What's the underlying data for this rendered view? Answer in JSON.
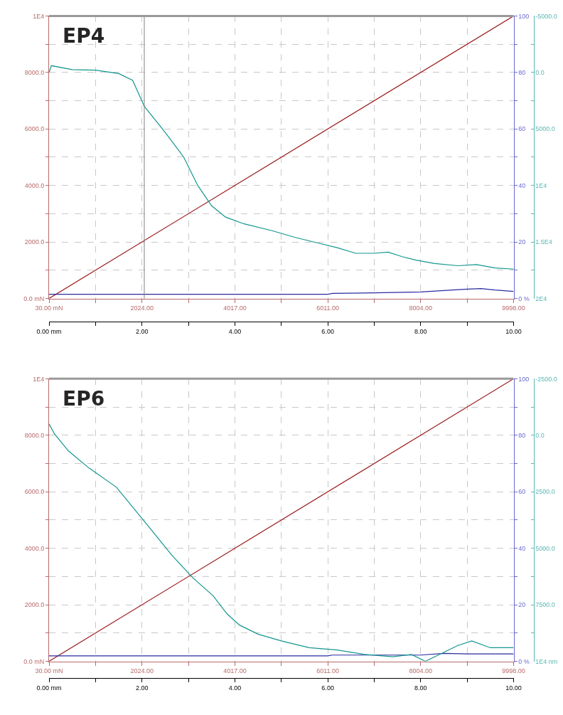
{
  "chart_data": [
    {
      "type": "line",
      "title": "EP4",
      "grid": true,
      "marker": "none",
      "line_style": "solid",
      "xlim": [
        0,
        10
      ],
      "xticks": [
        {
          "value": 0,
          "label": "0.00 mm"
        },
        {
          "value": 1,
          "label": null
        },
        {
          "value": 2,
          "label": "2.00"
        },
        {
          "value": 3,
          "label": null
        },
        {
          "value": 4,
          "label": "4.00"
        },
        {
          "value": 5,
          "label": null
        },
        {
          "value": 6,
          "label": "6.00"
        },
        {
          "value": 7,
          "label": null
        },
        {
          "value": 8,
          "label": "8.00"
        },
        {
          "value": 9,
          "label": null
        },
        {
          "value": 10,
          "label": "10.00"
        }
      ],
      "x2lim": [
        30,
        9998
      ],
      "x2ticks": [
        {
          "value": 30,
          "label": "30.00 mN"
        },
        {
          "value": 1026.8,
          "label": null
        },
        {
          "value": 2024,
          "label": "2024.00"
        },
        {
          "value": 3020.4,
          "label": null
        },
        {
          "value": 4017,
          "label": "4017.00"
        },
        {
          "value": 5014,
          "label": null
        },
        {
          "value": 6011,
          "label": "6011.00"
        },
        {
          "value": 7007.6,
          "label": null
        },
        {
          "value": 8004,
          "label": "8004.00"
        },
        {
          "value": 9001.2,
          "label": null
        },
        {
          "value": 9998,
          "label": "9998.00"
        }
      ],
      "ylim": [
        0,
        10000
      ],
      "yticks": [
        {
          "value": 0,
          "label": "0.0 mN"
        },
        {
          "value": 1000,
          "label": null
        },
        {
          "value": 2000,
          "label": "2000.0"
        },
        {
          "value": 3000,
          "label": null
        },
        {
          "value": 4000,
          "label": "4000.0"
        },
        {
          "value": 5000,
          "label": null
        },
        {
          "value": 6000,
          "label": "6000.0"
        },
        {
          "value": 7000,
          "label": null
        },
        {
          "value": 8000,
          "label": "8000.0"
        },
        {
          "value": 9000,
          "label": null
        },
        {
          "value": 10000,
          "label": "1E4"
        }
      ],
      "y2lim": [
        0,
        100
      ],
      "y2ticks": [
        {
          "value": 0,
          "label": "0 %"
        },
        {
          "value": 10,
          "label": null
        },
        20,
        {
          "value": 30,
          "label": null
        },
        40,
        {
          "value": 50,
          "label": null
        },
        60,
        {
          "value": 70,
          "label": null
        },
        80,
        {
          "value": 90,
          "label": null
        },
        100
      ],
      "y3lim": [
        20000,
        -5000
      ],
      "y3ticks": [
        {
          "value": -5000,
          "label": "-5000.0"
        },
        {
          "value": -2500,
          "label": null
        },
        {
          "value": 0,
          "label": "0.0"
        },
        {
          "value": 2500,
          "label": null
        },
        {
          "value": 5000,
          "label": "5000.0"
        },
        {
          "value": 7500,
          "label": null
        },
        {
          "value": 10000,
          "label": "1E4"
        },
        {
          "value": 12500,
          "label": null
        },
        {
          "value": 15000,
          "label": "1.5E4"
        },
        {
          "value": 17500,
          "label": null
        },
        {
          "value": 20000,
          "label": "2E4"
        }
      ],
      "ref_lines": [
        {
          "axis": "x",
          "value": 2.05,
          "color": "#808080"
        }
      ],
      "series": [
        {
          "color": "#9b1c1c",
          "x": [
            0,
            10
          ],
          "values": [
            0,
            10000
          ]
        },
        {
          "color": "#2b2ba0",
          "axis": "y2",
          "x": [
            0,
            6,
            6.1,
            7,
            8,
            8.5,
            9,
            9.3,
            9.6,
            10
          ],
          "values": [
            1.5,
            1.5,
            1.8,
            2.0,
            2.3,
            2.8,
            3.3,
            3.5,
            3.0,
            2.5
          ]
        },
        {
          "color": "#12968e",
          "axis": "y3",
          "x": [
            0,
            0.05,
            0.5,
            1.0,
            1.5,
            1.8,
            2.05,
            2.5,
            2.9,
            3.2,
            3.5,
            3.8,
            4.2,
            4.8,
            5.3,
            5.8,
            6.2,
            6.6,
            7.0,
            7.3,
            7.6,
            7.9,
            8.3,
            8.8,
            9.2,
            9.6,
            10
          ],
          "values": [
            0,
            -600,
            -250,
            -200,
            100,
            700,
            3000,
            5300,
            7500,
            10000,
            11800,
            12800,
            13400,
            14000,
            14600,
            15100,
            15500,
            16000,
            16000,
            15900,
            16300,
            16600,
            16900,
            17100,
            17000,
            17300,
            17400
          ]
        }
      ]
    },
    {
      "type": "line",
      "title": "EP6",
      "grid": true,
      "marker": "none",
      "line_style": "solid",
      "xlim": [
        0,
        10
      ],
      "xticks": [
        {
          "value": 0,
          "label": "0.00 mm"
        },
        {
          "value": 1,
          "label": null
        },
        {
          "value": 2,
          "label": "2.00"
        },
        {
          "value": 3,
          "label": null
        },
        {
          "value": 4,
          "label": "4.00"
        },
        {
          "value": 5,
          "label": null
        },
        {
          "value": 6,
          "label": "6.00"
        },
        {
          "value": 7,
          "label": null
        },
        {
          "value": 8,
          "label": "8.00"
        },
        {
          "value": 9,
          "label": null
        },
        {
          "value": 10,
          "label": "10.00"
        }
      ],
      "x2lim": [
        30,
        9998
      ],
      "x2ticks": [
        {
          "value": 30,
          "label": "30.00 mN"
        },
        {
          "value": 1026.8,
          "label": null
        },
        {
          "value": 2024,
          "label": "2024.00"
        },
        {
          "value": 3020.4,
          "label": null
        },
        {
          "value": 4017,
          "label": "4017.00"
        },
        {
          "value": 5014,
          "label": null
        },
        {
          "value": 6011,
          "label": "6011.00"
        },
        {
          "value": 7007.6,
          "label": null
        },
        {
          "value": 8004,
          "label": "8004.00"
        },
        {
          "value": 9001.2,
          "label": null
        },
        {
          "value": 9998,
          "label": "9998.00"
        }
      ],
      "ylim": [
        0,
        10000
      ],
      "yticks": [
        {
          "value": 0,
          "label": "0.0 mN"
        },
        {
          "value": 1000,
          "label": null
        },
        {
          "value": 2000,
          "label": "2000.0"
        },
        {
          "value": 3000,
          "label": null
        },
        {
          "value": 4000,
          "label": "4000.0"
        },
        {
          "value": 5000,
          "label": null
        },
        {
          "value": 6000,
          "label": "6000.0"
        },
        {
          "value": 7000,
          "label": null
        },
        {
          "value": 8000,
          "label": "8000.0"
        },
        {
          "value": 9000,
          "label": null
        },
        {
          "value": 10000,
          "label": "1E4"
        }
      ],
      "y2lim": [
        0,
        100
      ],
      "y2ticks": [
        {
          "value": 0,
          "label": "0 %"
        },
        {
          "value": 10,
          "label": null
        },
        20,
        {
          "value": 30,
          "label": null
        },
        40,
        {
          "value": 50,
          "label": null
        },
        60,
        {
          "value": 70,
          "label": null
        },
        80,
        {
          "value": 90,
          "label": null
        },
        100
      ],
      "y3lim": [
        10000,
        -2500
      ],
      "y3ticks": [
        {
          "value": -2500,
          "label": "-2500.0"
        },
        {
          "value": -1250,
          "label": null
        },
        {
          "value": 0,
          "label": "0.0"
        },
        {
          "value": 1250,
          "label": null
        },
        {
          "value": 2500,
          "label": "2500.0"
        },
        {
          "value": 3750,
          "label": null
        },
        {
          "value": 5000,
          "label": "5000.0"
        },
        {
          "value": 6250,
          "label": null
        },
        {
          "value": 7500,
          "label": "7500.0"
        },
        {
          "value": 8750,
          "label": null
        },
        {
          "value": 10000,
          "label": "1E4 nm"
        }
      ],
      "series": [
        {
          "color": "#9b1c1c",
          "x": [
            0,
            10
          ],
          "values": [
            0,
            10000
          ]
        },
        {
          "color": "#2b2ba0",
          "axis": "y2",
          "x": [
            0,
            6,
            6.1,
            8,
            8.5,
            9,
            10
          ],
          "values": [
            1.9,
            1.9,
            2.2,
            2.2,
            2.8,
            2.6,
            2.6
          ]
        },
        {
          "color": "#12968e",
          "axis": "y3",
          "x": [
            0,
            0.12,
            0.42,
            0.86,
            1.45,
            2.05,
            2.64,
            3.09,
            3.53,
            3.83,
            4.1,
            4.5,
            5.0,
            5.6,
            6.2,
            6.8,
            7.4,
            7.8,
            8.1,
            8.4,
            8.8,
            9.1,
            9.5,
            10
          ],
          "values": [
            -500,
            -50,
            700,
            1450,
            2300,
            3800,
            5300,
            6300,
            7100,
            7900,
            8400,
            8800,
            9100,
            9400,
            9500,
            9700,
            9800,
            9700,
            10000,
            9700,
            9300,
            9100,
            9400,
            9400
          ]
        }
      ]
    }
  ]
}
